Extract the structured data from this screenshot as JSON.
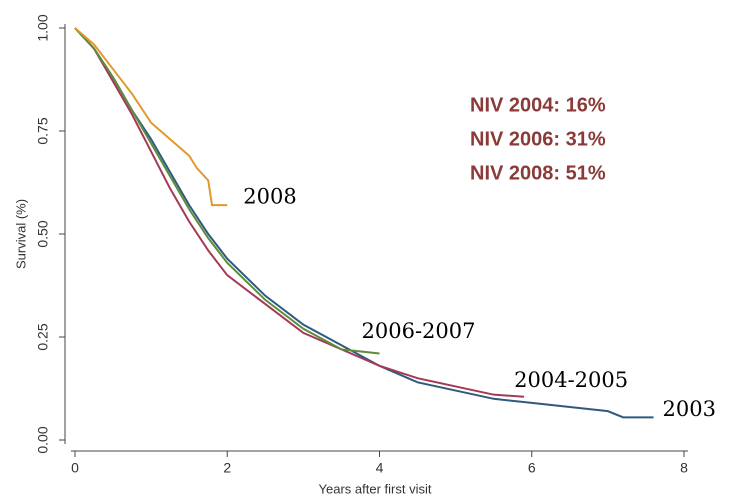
{
  "chart_data": {
    "type": "line",
    "x_label": "Years after first visit",
    "y_label": "Survival (%)",
    "xlim": [
      0,
      8
    ],
    "xticks": [
      0,
      2,
      4,
      6,
      8
    ],
    "ylim": [
      0,
      1
    ],
    "yticks": [
      {
        "value": 0,
        "label": "0.00"
      },
      {
        "value": 0.25,
        "label": "0.25"
      },
      {
        "value": 0.5,
        "label": "0.50"
      },
      {
        "value": 0.75,
        "label": "0.75"
      },
      {
        "value": 1,
        "label": "1.00"
      }
    ],
    "grid": false,
    "annotations": [
      "NIV 2004: 16%",
      "NIV 2006: 31%",
      "NIV 2008: 51%"
    ],
    "series": [
      {
        "name": "2003",
        "color": "#2f5a7e",
        "x": [
          0,
          0.25,
          0.5,
          0.75,
          1,
          1.25,
          1.5,
          1.75,
          2,
          2.5,
          3,
          3.5,
          4,
          4.5,
          5,
          5.5,
          6,
          6.5,
          7,
          7.2,
          7.6
        ],
        "values": [
          1,
          0.95,
          0.88,
          0.8,
          0.73,
          0.65,
          0.57,
          0.5,
          0.44,
          0.35,
          0.28,
          0.23,
          0.18,
          0.14,
          0.12,
          0.1,
          0.09,
          0.08,
          0.07,
          0.055,
          0.055
        ]
      },
      {
        "name": "2004-2005",
        "color": "#a33a55",
        "x": [
          0,
          0.25,
          0.5,
          0.75,
          1,
          1.25,
          1.5,
          1.75,
          2,
          2.5,
          3,
          3.5,
          4,
          4.5,
          5,
          5.5,
          5.9
        ],
        "values": [
          1,
          0.95,
          0.87,
          0.79,
          0.7,
          0.61,
          0.53,
          0.46,
          0.4,
          0.33,
          0.26,
          0.22,
          0.18,
          0.15,
          0.13,
          0.11,
          0.105
        ]
      },
      {
        "name": "2006-2007",
        "color": "#5c8c3c",
        "x": [
          0,
          0.25,
          0.5,
          0.75,
          1,
          1.25,
          1.5,
          1.75,
          2,
          2.5,
          3,
          3.5,
          4
        ],
        "values": [
          1,
          0.95,
          0.88,
          0.8,
          0.72,
          0.64,
          0.56,
          0.49,
          0.43,
          0.34,
          0.27,
          0.22,
          0.21
        ]
      },
      {
        "name": "2008",
        "color": "#e09a2a",
        "x": [
          0,
          0.25,
          0.5,
          0.75,
          1,
          1.25,
          1.5,
          1.6,
          1.75,
          1.8,
          1.9,
          2
        ],
        "values": [
          1,
          0.96,
          0.9,
          0.84,
          0.77,
          0.73,
          0.69,
          0.66,
          0.63,
          0.57,
          0.57,
          0.57
        ]
      }
    ]
  }
}
